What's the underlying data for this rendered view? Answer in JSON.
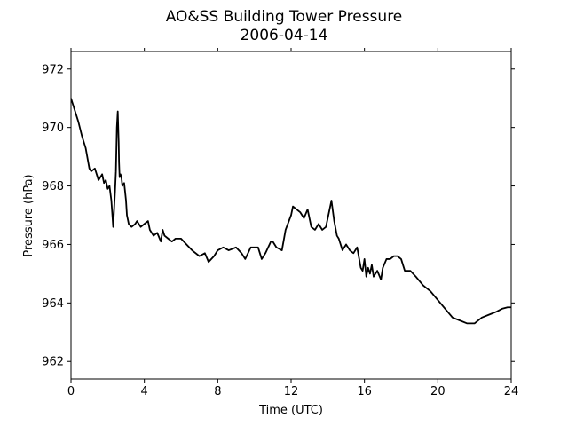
{
  "chart_data": {
    "type": "line",
    "title": "AO&SS Building Tower Pressure",
    "subtitle": "2006-04-14",
    "xlabel": "Time (UTC)",
    "ylabel": "Pressure (hPa)",
    "xlim": [
      0,
      24
    ],
    "ylim": [
      961.4,
      972.6
    ],
    "xticks": [
      0,
      4,
      8,
      12,
      16,
      20,
      24
    ],
    "yticks": [
      962,
      964,
      966,
      968,
      970,
      972
    ],
    "grid": false,
    "line_color": "#000000",
    "series": [
      {
        "x": [
          0,
          0.2,
          0.4,
          0.6,
          0.8,
          1.0,
          1.1,
          1.3,
          1.5,
          1.7,
          1.8,
          1.9,
          2.0,
          2.1,
          2.2,
          2.3,
          2.4,
          2.45,
          2.5,
          2.55,
          2.6,
          2.62,
          2.65,
          2.7,
          2.75,
          2.8,
          2.9,
          3.0,
          3.05,
          3.15,
          3.3,
          3.5,
          3.6,
          3.8,
          4.0,
          4.2,
          4.3,
          4.5,
          4.7,
          4.9,
          5.0,
          5.1,
          5.3,
          5.5,
          5.7,
          6.0,
          6.3,
          6.6,
          7.0,
          7.3,
          7.5,
          7.8,
          8.0,
          8.3,
          8.6,
          9.0,
          9.3,
          9.5,
          9.8,
          10.0,
          10.2,
          10.4,
          10.6,
          10.9,
          11.0,
          11.2,
          11.5,
          11.7,
          12.0,
          12.1,
          12.3,
          12.5,
          12.7,
          12.9,
          13.1,
          13.3,
          13.5,
          13.7,
          13.9,
          14.1,
          14.2,
          14.35,
          14.5,
          14.6,
          14.8,
          15.0,
          15.2,
          15.4,
          15.6,
          15.8,
          15.9,
          16.0,
          16.1,
          16.2,
          16.3,
          16.4,
          16.5,
          16.7,
          16.9,
          17.0,
          17.2,
          17.4,
          17.6,
          17.8,
          18.0,
          18.2,
          18.5,
          18.8,
          19.2,
          19.6,
          20.0,
          20.4,
          20.8,
          21.2,
          21.6,
          22.0,
          22.4,
          22.8,
          23.2,
          23.5,
          23.8,
          24.0
        ],
        "y": [
          971.0,
          970.6,
          970.2,
          969.7,
          969.3,
          968.6,
          968.5,
          968.6,
          968.2,
          968.4,
          968.1,
          968.2,
          967.9,
          968.0,
          967.5,
          966.6,
          967.8,
          968.5,
          970.0,
          970.55,
          969.5,
          968.8,
          968.3,
          968.4,
          968.3,
          968.0,
          968.1,
          967.5,
          967.0,
          966.7,
          966.6,
          966.7,
          966.8,
          966.6,
          966.7,
          966.8,
          966.5,
          966.3,
          966.4,
          966.1,
          966.5,
          966.3,
          966.2,
          966.1,
          966.2,
          966.2,
          966.0,
          965.8,
          965.6,
          965.7,
          965.4,
          965.6,
          965.8,
          965.9,
          965.8,
          965.9,
          965.7,
          965.5,
          965.9,
          965.9,
          965.9,
          965.5,
          965.7,
          966.1,
          966.1,
          965.9,
          965.8,
          966.5,
          967.0,
          967.3,
          967.2,
          967.1,
          966.9,
          967.2,
          966.6,
          966.5,
          966.7,
          966.5,
          966.6,
          967.2,
          967.5,
          966.8,
          966.3,
          966.2,
          965.8,
          966.0,
          965.8,
          965.7,
          965.9,
          965.2,
          965.1,
          965.5,
          964.9,
          965.2,
          965.0,
          965.3,
          964.9,
          965.1,
          964.8,
          965.2,
          965.5,
          965.5,
          965.6,
          965.6,
          965.5,
          965.1,
          965.1,
          964.9,
          964.6,
          964.4,
          964.1,
          963.8,
          963.5,
          963.4,
          963.3,
          963.3,
          963.5,
          963.6,
          963.7,
          963.8,
          963.85,
          963.85
        ]
      }
    ]
  }
}
